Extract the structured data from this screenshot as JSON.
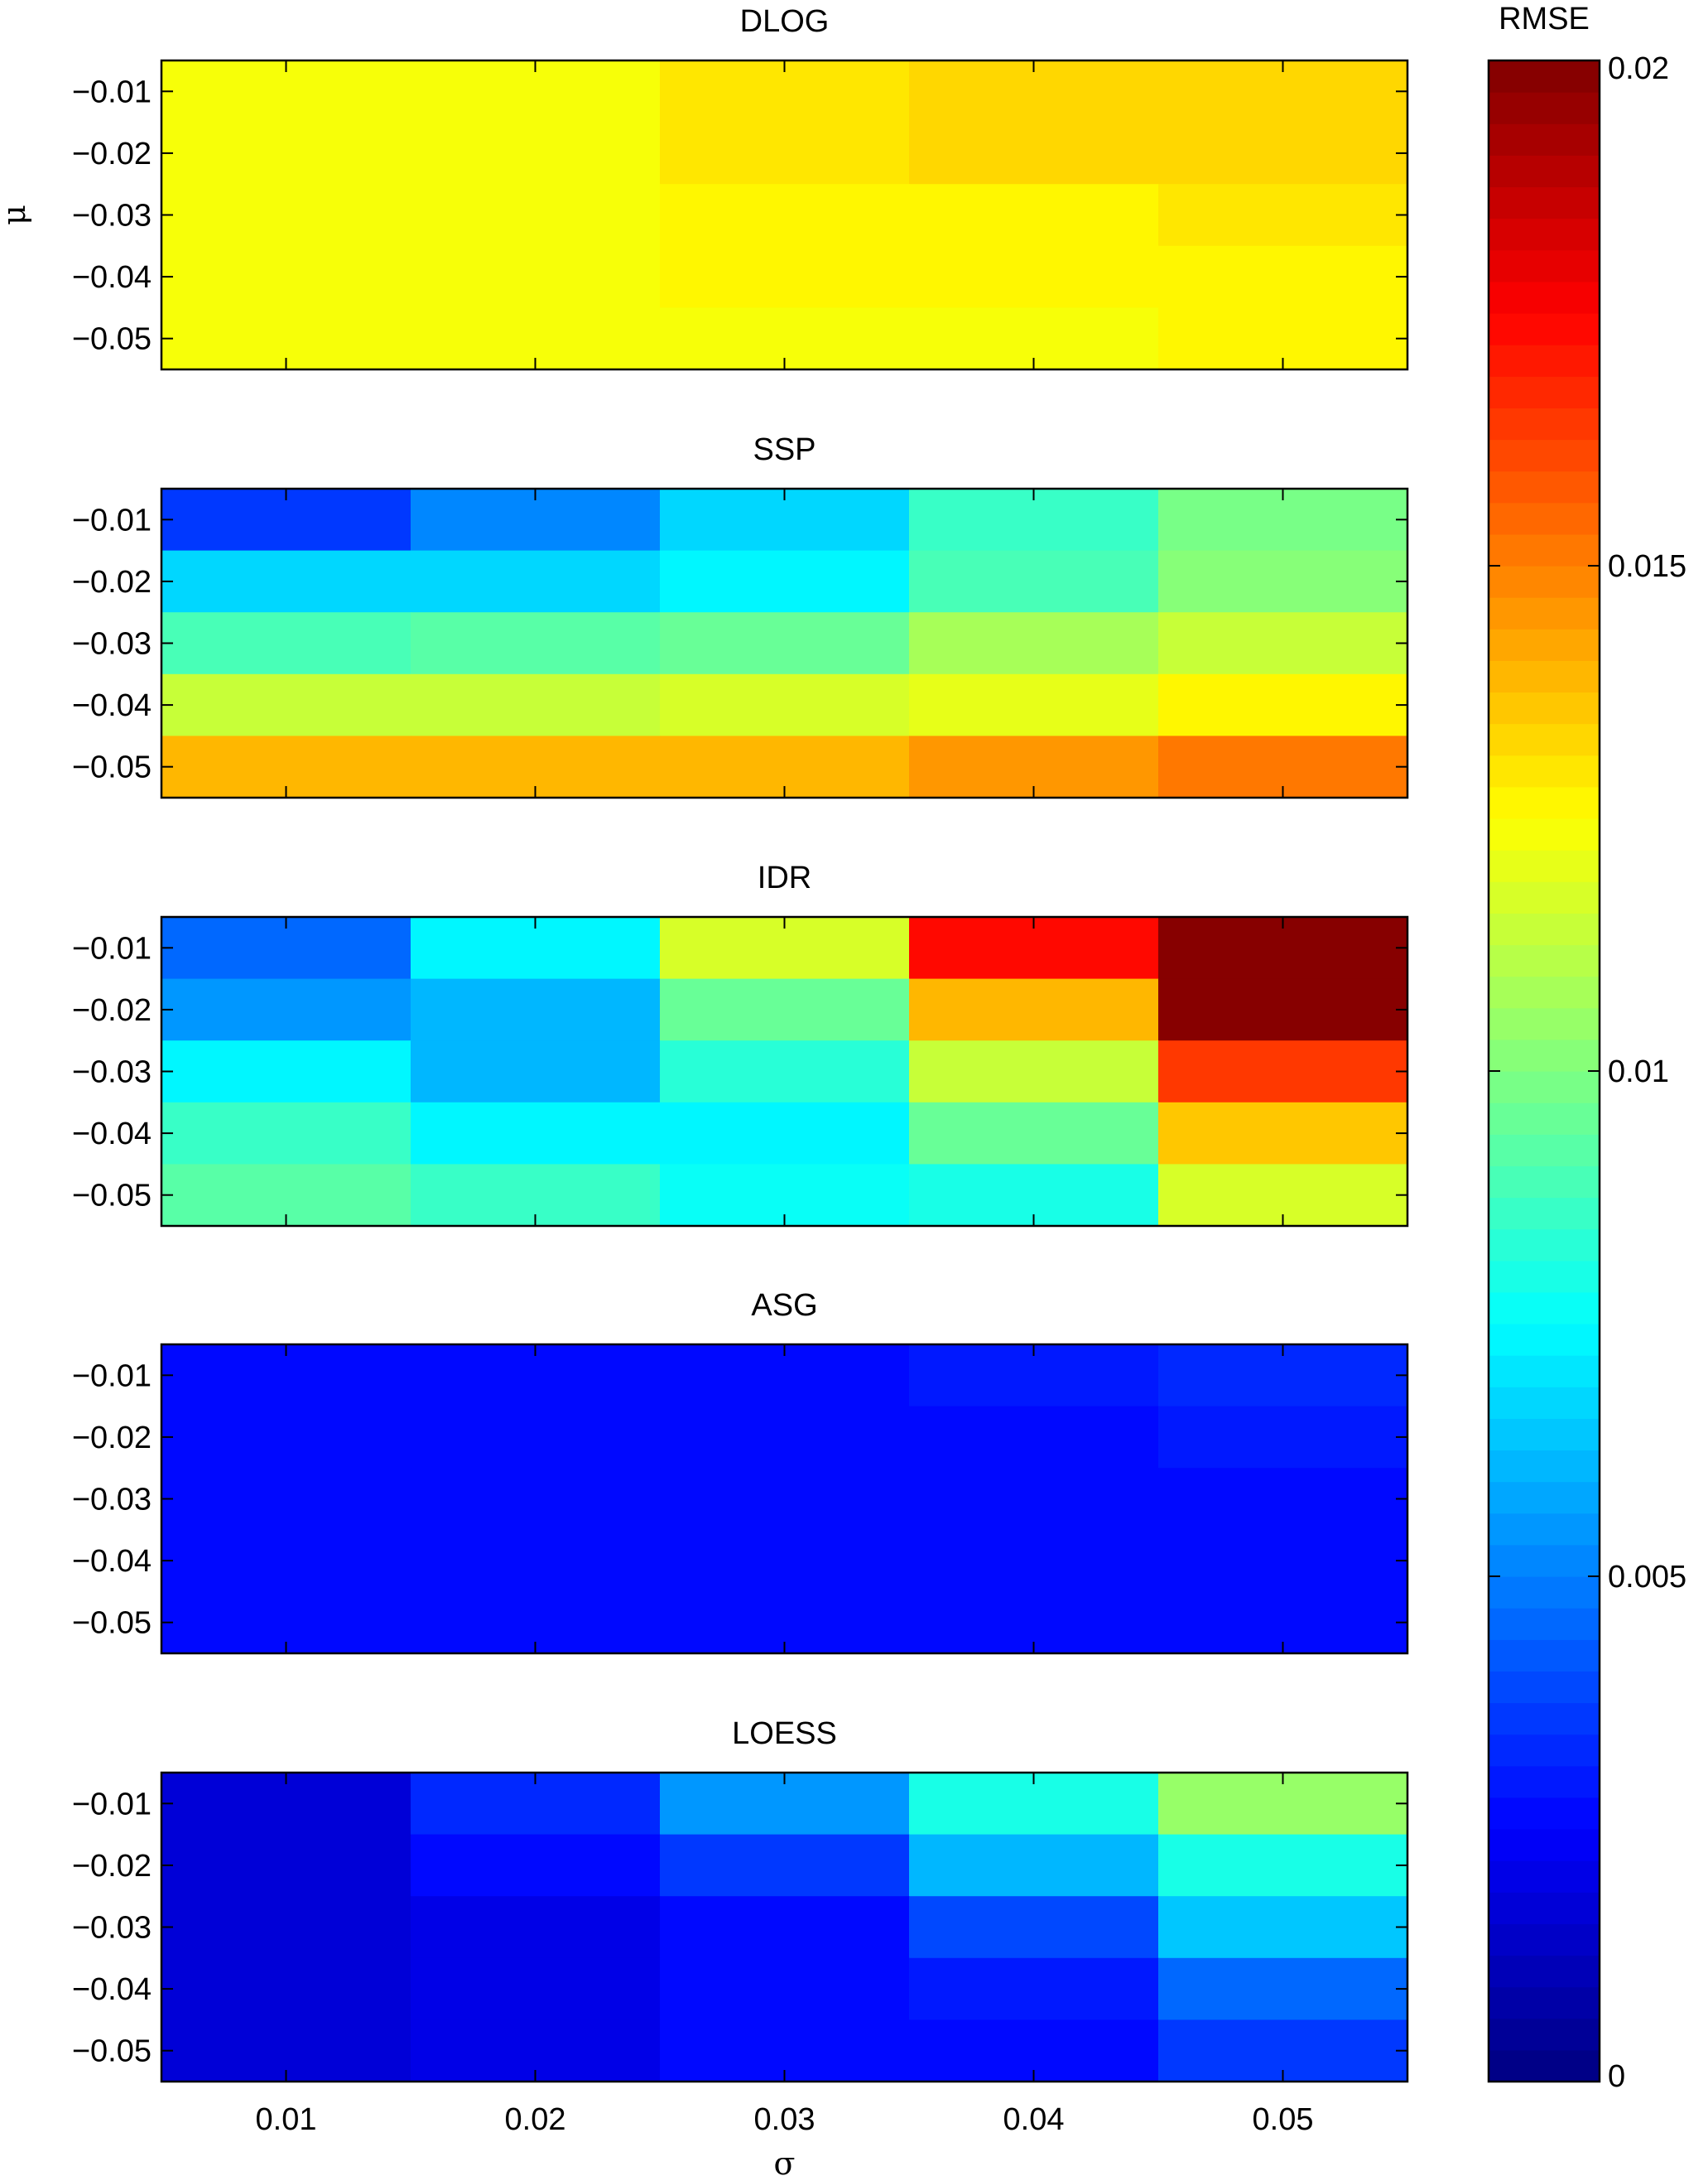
{
  "chart_data": [
    {
      "type": "heatmap",
      "title": "DLOG",
      "ylabel": "μ",
      "x_categories": [
        "0.01",
        "0.02",
        "0.03",
        "0.04",
        "0.05"
      ],
      "y_categories": [
        "−0.01",
        "−0.02",
        "−0.03",
        "−0.04",
        "−0.05"
      ],
      "values": [
        [
          0.0124,
          0.0124,
          0.013,
          0.0133,
          0.0133
        ],
        [
          0.0124,
          0.0124,
          0.013,
          0.0133,
          0.0133
        ],
        [
          0.0124,
          0.0124,
          0.0126,
          0.0126,
          0.013
        ],
        [
          0.0124,
          0.0124,
          0.0126,
          0.0126,
          0.0125
        ],
        [
          0.0124,
          0.0124,
          0.0123,
          0.0123,
          0.0125
        ]
      ]
    },
    {
      "type": "heatmap",
      "title": "SSP",
      "x_categories": [
        "0.01",
        "0.02",
        "0.03",
        "0.04",
        "0.05"
      ],
      "y_categories": [
        "−0.01",
        "−0.02",
        "−0.03",
        "−0.04",
        "−0.05"
      ],
      "values": [
        [
          0.0035,
          0.005,
          0.0068,
          0.0085,
          0.0098
        ],
        [
          0.0066,
          0.0066,
          0.0072,
          0.009,
          0.01
        ],
        [
          0.009,
          0.0092,
          0.0095,
          0.0107,
          0.0115
        ],
        [
          0.0115,
          0.0115,
          0.0117,
          0.012,
          0.0127
        ],
        [
          0.014,
          0.014,
          0.014,
          0.0145,
          0.015
        ]
      ]
    },
    {
      "type": "heatmap",
      "title": "IDR",
      "x_categories": [
        "0.01",
        "0.02",
        "0.03",
        "0.04",
        "0.05"
      ],
      "y_categories": [
        "−0.01",
        "−0.02",
        "−0.03",
        "−0.04",
        "−0.05"
      ],
      "values": [
        [
          0.0045,
          0.0072,
          0.0117,
          0.0172,
          0.0197
        ],
        [
          0.0055,
          0.0062,
          0.0095,
          0.014,
          0.0197
        ],
        [
          0.0072,
          0.0062,
          0.0082,
          0.0115,
          0.0165
        ],
        [
          0.0085,
          0.0072,
          0.0072,
          0.0095,
          0.0137
        ],
        [
          0.0092,
          0.0085,
          0.0075,
          0.008,
          0.0117
        ]
      ]
    },
    {
      "type": "heatmap",
      "title": "ASG",
      "x_categories": [
        "0.01",
        "0.02",
        "0.03",
        "0.04",
        "0.05"
      ],
      "y_categories": [
        "−0.01",
        "−0.02",
        "−0.03",
        "−0.04",
        "−0.05"
      ],
      "values": [
        [
          0.0025,
          0.0025,
          0.0028,
          0.003,
          0.0032
        ],
        [
          0.0025,
          0.0025,
          0.0025,
          0.0028,
          0.003
        ],
        [
          0.0025,
          0.0025,
          0.0025,
          0.0025,
          0.0028
        ],
        [
          0.0025,
          0.0025,
          0.0025,
          0.0025,
          0.0025
        ],
        [
          0.0025,
          0.0025,
          0.0025,
          0.0025,
          0.0025
        ]
      ]
    },
    {
      "type": "heatmap",
      "title": "LOESS",
      "xlabel": "σ",
      "x_categories": [
        "0.01",
        "0.02",
        "0.03",
        "0.04",
        "0.05"
      ],
      "y_categories": [
        "−0.01",
        "−0.02",
        "−0.03",
        "−0.04",
        "−0.05"
      ],
      "values": [
        [
          0.0017,
          0.0032,
          0.0055,
          0.008,
          0.0105
        ],
        [
          0.0017,
          0.0025,
          0.0037,
          0.006,
          0.008
        ],
        [
          0.0017,
          0.002,
          0.0025,
          0.004,
          0.0065
        ],
        [
          0.0017,
          0.002,
          0.0025,
          0.003,
          0.0045
        ],
        [
          0.0017,
          0.002,
          0.0025,
          0.0025,
          0.0035
        ]
      ]
    }
  ],
  "colorbar": {
    "title": "RMSE",
    "range": [
      0,
      0.02
    ],
    "levels": 64,
    "colormap": "jet",
    "tick_values": [
      0,
      0.005,
      0.01,
      0.015,
      0.02
    ],
    "tick_labels": [
      "0",
      "0.005",
      "0.01",
      "0.015",
      "0.02"
    ]
  }
}
